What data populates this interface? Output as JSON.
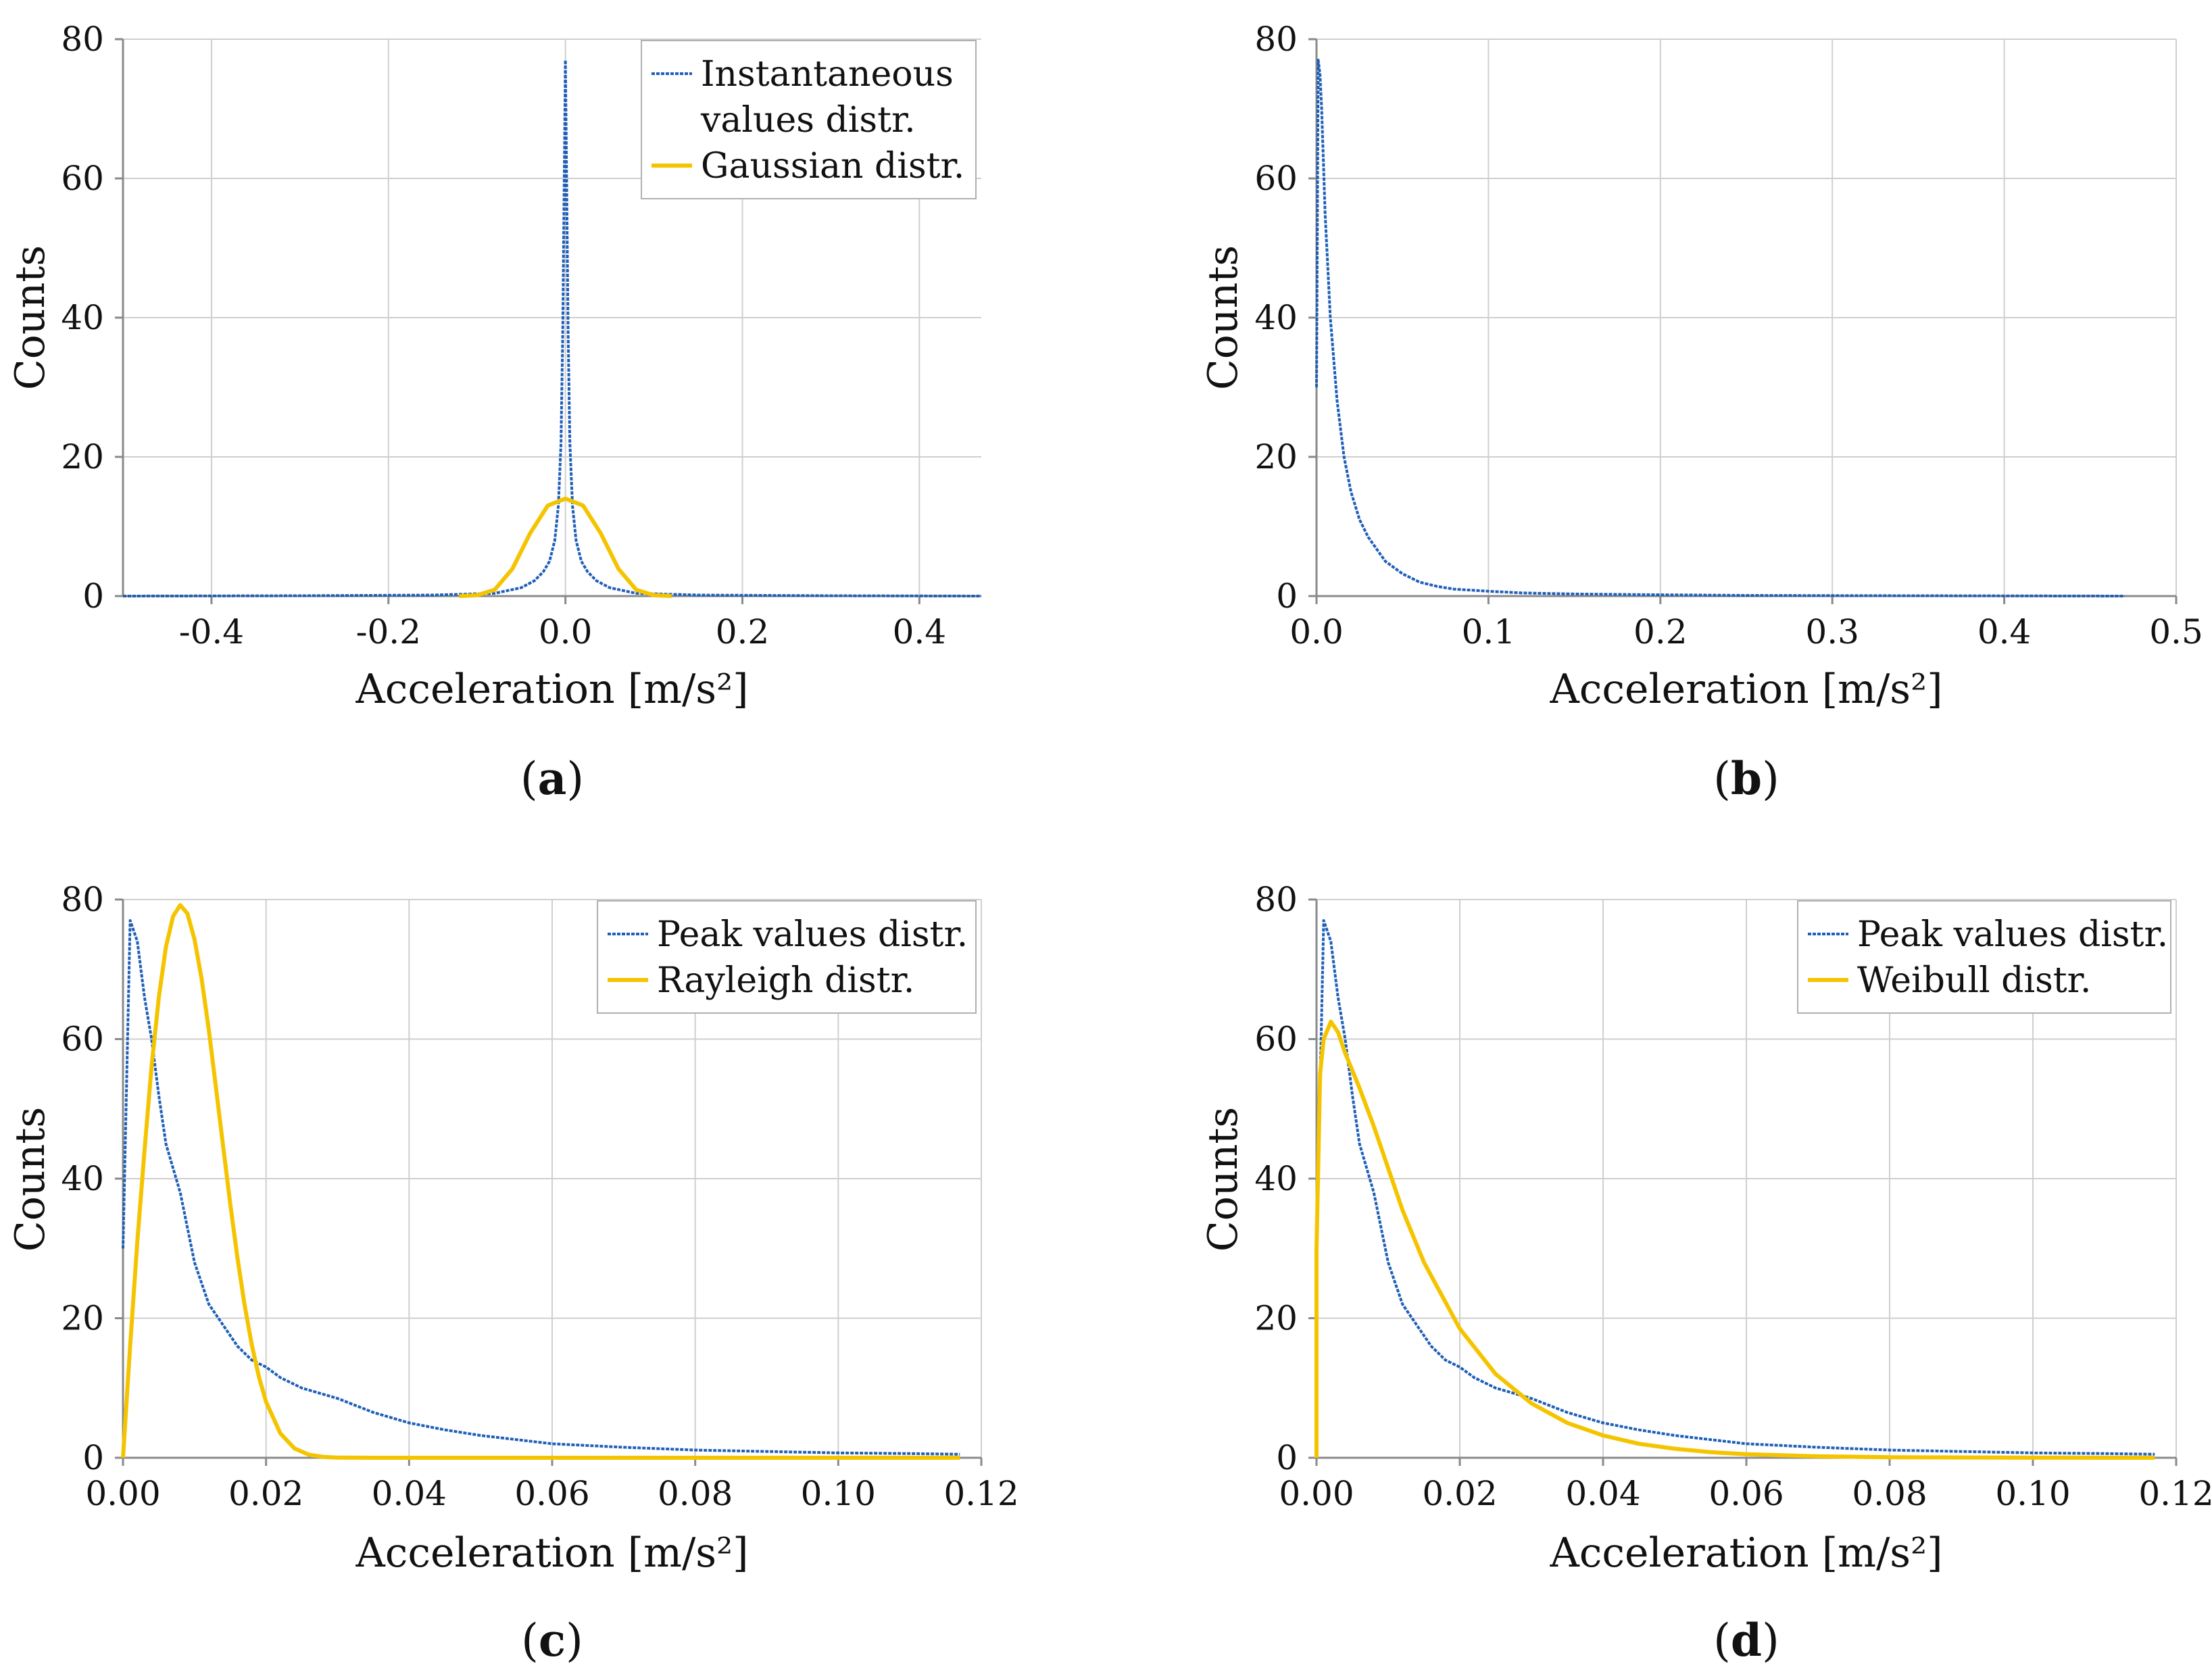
{
  "colors": {
    "blue": "#1f5fb8",
    "gold": "#f5c400"
  },
  "chart_data": [
    {
      "id": "a",
      "type": "line",
      "panel_label": {
        "open": "(",
        "letter": "a",
        "close": ")"
      },
      "xlabel": "Acceleration  [m/s²]",
      "ylabel": "Counts",
      "xlim": [
        -0.5,
        0.47
      ],
      "ylim": [
        0,
        80
      ],
      "xticks": [
        -0.4,
        -0.2,
        0.0,
        0.2,
        0.4
      ],
      "xtick_labels": [
        "-0.4",
        "-0.2",
        "0.0",
        "0.2",
        "0.4"
      ],
      "yticks": [
        0,
        20,
        40,
        60,
        80
      ],
      "ytick_labels": [
        "0",
        "20",
        "40",
        "60",
        "80"
      ],
      "legend": [
        "Instantaneous values distr.",
        "Gaussian distr."
      ],
      "legend_lines": [
        [
          "Instantaneous",
          "values distr."
        ],
        [
          "Gaussian distr."
        ]
      ],
      "legend_position": "top-right",
      "series": [
        {
          "name": "Instantaneous values distr.",
          "color_key": "blue",
          "style": "dotted",
          "x": [
            -0.5,
            -0.3,
            -0.15,
            -0.08,
            -0.05,
            -0.035,
            -0.025,
            -0.018,
            -0.012,
            -0.008,
            -0.005,
            -0.003,
            -0.0015,
            0.0,
            0.0015,
            0.003,
            0.005,
            0.008,
            0.012,
            0.018,
            0.025,
            0.035,
            0.05,
            0.08,
            0.15,
            0.3,
            0.47
          ],
          "y": [
            0,
            0.05,
            0.15,
            0.4,
            1.2,
            2.2,
            3.5,
            5,
            8,
            13,
            22,
            38,
            58,
            77,
            58,
            38,
            22,
            13,
            8,
            5,
            3.5,
            2.2,
            1.2,
            0.4,
            0.15,
            0.05,
            0
          ]
        },
        {
          "name": "Gaussian distr.",
          "color_key": "gold",
          "style": "solid",
          "x": [
            -0.12,
            -0.1,
            -0.08,
            -0.06,
            -0.04,
            -0.02,
            0.0,
            0.02,
            0.04,
            0.06,
            0.08,
            0.1,
            0.12
          ],
          "y": [
            0.01,
            0.13,
            0.9,
            3.9,
            9.0,
            13.0,
            14.0,
            13.0,
            9.0,
            3.9,
            0.9,
            0.13,
            0.01
          ]
        }
      ]
    },
    {
      "id": "b",
      "type": "line",
      "panel_label": {
        "open": "(",
        "letter": "b",
        "close": ")"
      },
      "xlabel": "Acceleration  [m/s²]",
      "ylabel": "Counts",
      "xlim": [
        0,
        0.5
      ],
      "ylim": [
        0,
        80
      ],
      "xticks": [
        0.0,
        0.1,
        0.2,
        0.3,
        0.4,
        0.5
      ],
      "xtick_labels": [
        "0.0",
        "0.1",
        "0.2",
        "0.3",
        "0.4",
        "0.5"
      ],
      "yticks": [
        0,
        20,
        40,
        60,
        80
      ],
      "ytick_labels": [
        "0",
        "20",
        "40",
        "60",
        "80"
      ],
      "series": [
        {
          "name": "Peak values distr.",
          "color_key": "blue",
          "style": "dotted",
          "x": [
            0.0,
            0.001,
            0.002,
            0.003,
            0.005,
            0.008,
            0.012,
            0.016,
            0.02,
            0.025,
            0.03,
            0.04,
            0.05,
            0.06,
            0.07,
            0.08,
            0.1,
            0.12,
            0.15,
            0.2,
            0.25,
            0.3,
            0.4,
            0.47
          ],
          "y": [
            30,
            77,
            75,
            70,
            55,
            40,
            28,
            20,
            15,
            11,
            8.5,
            5,
            3.2,
            2.0,
            1.4,
            1.0,
            0.7,
            0.45,
            0.3,
            0.18,
            0.1,
            0.07,
            0.03,
            0.0
          ]
        }
      ]
    },
    {
      "id": "c",
      "type": "line",
      "panel_label": {
        "open": "(",
        "letter": "c",
        "close": ")"
      },
      "xlabel": "Acceleration  [m/s²]",
      "ylabel": "Counts",
      "xlim": [
        0,
        0.12
      ],
      "ylim": [
        0,
        80
      ],
      "xticks": [
        0.0,
        0.02,
        0.04,
        0.06,
        0.08,
        0.1,
        0.12
      ],
      "xtick_labels": [
        "0.00",
        "0.02",
        "0.04",
        "0.06",
        "0.08",
        "0.10",
        "0.12"
      ],
      "yticks": [
        0,
        20,
        40,
        60,
        80
      ],
      "ytick_labels": [
        "0",
        "20",
        "40",
        "60",
        "80"
      ],
      "legend": [
        "Peak values distr.",
        "Rayleigh distr."
      ],
      "legend_lines": [
        [
          "Peak values distr."
        ],
        [
          "Rayleigh distr."
        ]
      ],
      "legend_position": "top-right",
      "series": [
        {
          "name": "Peak values distr.",
          "color_key": "blue",
          "style": "dotted",
          "x": [
            0.0,
            0.001,
            0.002,
            0.003,
            0.004,
            0.005,
            0.006,
            0.008,
            0.01,
            0.012,
            0.014,
            0.016,
            0.018,
            0.02,
            0.022,
            0.025,
            0.03,
            0.035,
            0.04,
            0.045,
            0.05,
            0.06,
            0.07,
            0.08,
            0.09,
            0.1,
            0.11,
            0.117
          ],
          "y": [
            30,
            77,
            74,
            66,
            60,
            52,
            45,
            38,
            28,
            22,
            19,
            16,
            14,
            13,
            11.5,
            10,
            8.5,
            6.5,
            5,
            4,
            3.2,
            2,
            1.5,
            1.1,
            0.9,
            0.7,
            0.6,
            0.5
          ]
        },
        {
          "name": "Rayleigh distr.",
          "color_key": "gold",
          "style": "solid",
          "x": [
            0.0,
            0.001,
            0.002,
            0.003,
            0.004,
            0.005,
            0.006,
            0.007,
            0.008,
            0.009,
            0.01,
            0.011,
            0.012,
            0.013,
            0.014,
            0.015,
            0.016,
            0.017,
            0.018,
            0.019,
            0.02,
            0.022,
            0.024,
            0.026,
            0.028,
            0.03,
            0.035,
            0.04,
            0.05,
            0.06,
            0.08,
            0.1,
            0.117
          ],
          "y": [
            0,
            16.1,
            31.0,
            44.0,
            56.1,
            65.9,
            73.2,
            77.6,
            79.2,
            78.0,
            74.3,
            68.6,
            61.3,
            53.0,
            44.6,
            36.3,
            28.7,
            21.9,
            16.2,
            11.6,
            8.0,
            3.5,
            1.32,
            0.44,
            0.13,
            0.03,
            0.0,
            0.0,
            0.0,
            0.0,
            0.0,
            0.0,
            0.0
          ]
        }
      ]
    },
    {
      "id": "d",
      "type": "line",
      "panel_label": {
        "open": "(",
        "letter": "d",
        "close": ")"
      },
      "xlabel": "Acceleration  [m/s²]",
      "ylabel": "Counts",
      "xlim": [
        0,
        0.12
      ],
      "ylim": [
        0,
        80
      ],
      "xticks": [
        0.0,
        0.02,
        0.04,
        0.06,
        0.08,
        0.1,
        0.12
      ],
      "xtick_labels": [
        "0.00",
        "0.02",
        "0.04",
        "0.06",
        "0.08",
        "0.10",
        "0.12"
      ],
      "yticks": [
        0,
        20,
        40,
        60,
        80
      ],
      "ytick_labels": [
        "0",
        "20",
        "40",
        "60",
        "80"
      ],
      "legend": [
        "Peak values distr.",
        "Weibull distr."
      ],
      "legend_lines": [
        [
          "Peak values distr."
        ],
        [
          "Weibull distr."
        ]
      ],
      "legend_position": "top-right",
      "series": [
        {
          "name": "Peak values distr.",
          "color_key": "blue",
          "style": "dotted",
          "x": [
            0.0,
            0.001,
            0.002,
            0.003,
            0.004,
            0.005,
            0.006,
            0.008,
            0.01,
            0.012,
            0.014,
            0.016,
            0.018,
            0.02,
            0.022,
            0.025,
            0.03,
            0.035,
            0.04,
            0.045,
            0.05,
            0.06,
            0.07,
            0.08,
            0.09,
            0.1,
            0.11,
            0.117
          ],
          "y": [
            30,
            77,
            74,
            66,
            60,
            52,
            45,
            38,
            28,
            22,
            19,
            16,
            14,
            13,
            11.5,
            10,
            8.5,
            6.5,
            5,
            4,
            3.2,
            2,
            1.5,
            1.1,
            0.9,
            0.7,
            0.6,
            0.5
          ]
        },
        {
          "name": "Weibull distr.",
          "color_key": "gold",
          "style": "solid",
          "x": [
            0.0,
            0.0,
            0.0005,
            0.001,
            0.002,
            0.003,
            0.004,
            0.006,
            0.008,
            0.01,
            0.012,
            0.015,
            0.02,
            0.025,
            0.03,
            0.035,
            0.04,
            0.045,
            0.05,
            0.055,
            0.06,
            0.07,
            0.08,
            0.1,
            0.117
          ],
          "y": [
            0,
            30,
            55,
            60,
            62.5,
            61,
            58,
            53,
            47.5,
            41.5,
            35.5,
            28,
            18.5,
            12,
            7.8,
            5.0,
            3.2,
            2.0,
            1.3,
            0.8,
            0.5,
            0.2,
            0.08,
            0.01,
            0.0
          ]
        }
      ]
    }
  ]
}
